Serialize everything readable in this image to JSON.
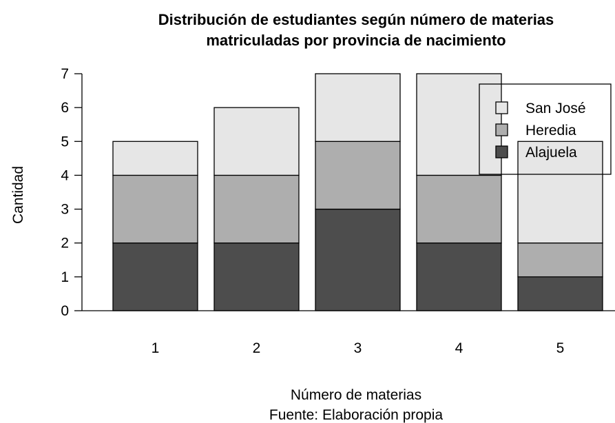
{
  "chart_data": {
    "type": "bar",
    "stacked": true,
    "title": [
      "Distribución de estudiantes según número de materias",
      "matriculadas por provincia de nacimiento"
    ],
    "xlabel": "Número de materias",
    "caption": "Fuente: Elaboración propia",
    "ylabel": "Cantidad",
    "categories": [
      "1",
      "2",
      "3",
      "4",
      "5"
    ],
    "y_ticks": [
      "0",
      "1",
      "2",
      "3",
      "4",
      "5",
      "6",
      "7"
    ],
    "ylim": [
      0,
      7
    ],
    "series": [
      {
        "name": "Alajuela",
        "color": "#4d4d4d",
        "values": [
          2,
          2,
          3,
          2,
          1
        ]
      },
      {
        "name": "Heredia",
        "color": "#aeaeae",
        "values": [
          2,
          2,
          2,
          2,
          1
        ]
      },
      {
        "name": "San José",
        "color": "#e6e6e6",
        "values": [
          1,
          2,
          2,
          3,
          3
        ]
      }
    ],
    "legend": {
      "position": "top-right",
      "order": [
        "San José",
        "Heredia",
        "Alajuela"
      ]
    },
    "grid": false
  }
}
